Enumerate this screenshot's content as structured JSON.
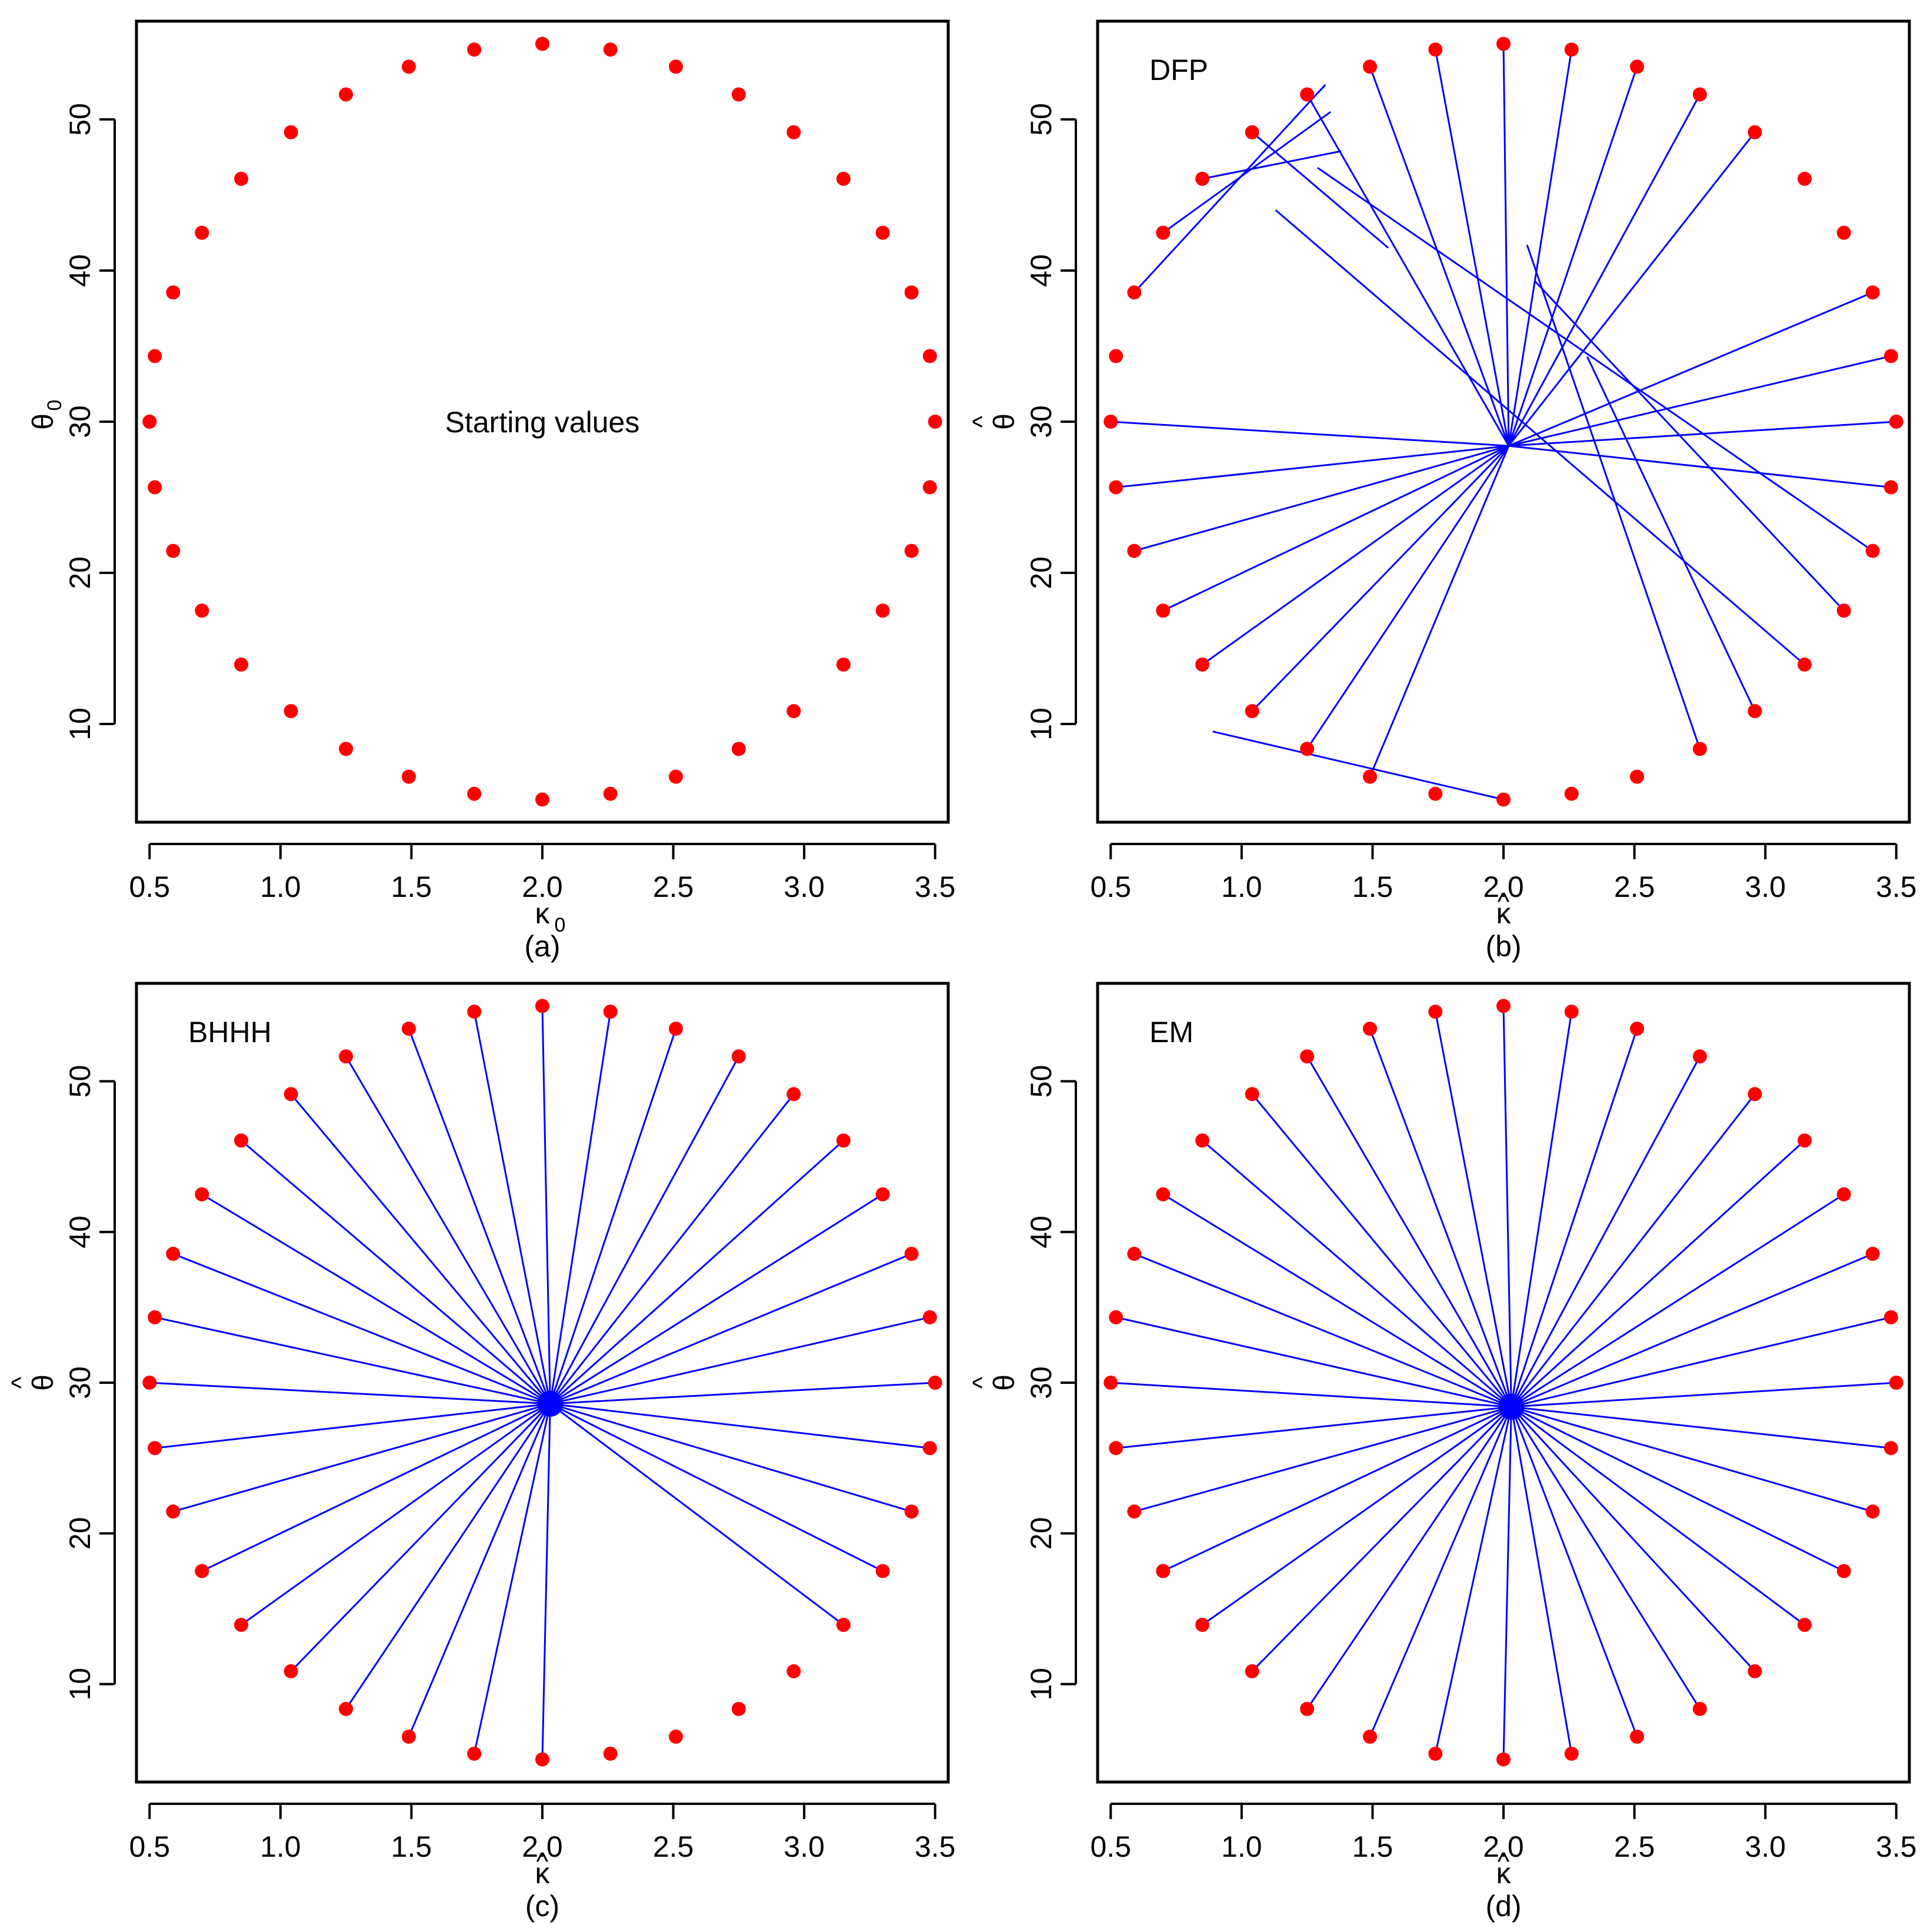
{
  "chart_data": [
    {
      "type": "scatter",
      "id": "a",
      "caption": "(a)",
      "annotation": "Starting values",
      "xlabel": "κ",
      "xlabel_sub": "0",
      "xlabel_hat": "",
      "ylabel": "θ",
      "ylabel_sub": "0",
      "ylabel_hat": "",
      "xlim": [
        0.45,
        3.55
      ],
      "ylim": [
        3.5,
        56.5
      ],
      "xticks": [
        0.5,
        1.0,
        1.5,
        2.0,
        2.5,
        3.0,
        3.5
      ],
      "xtick_labels": [
        "0.5",
        "1.0",
        "1.5",
        "2.0",
        "2.5",
        "3.0",
        "3.5"
      ],
      "yticks": [
        10,
        20,
        30,
        40,
        50
      ],
      "ytick_labels": [
        "10",
        "20",
        "30",
        "40",
        "50"
      ],
      "point_color": "#ff0000",
      "line_color": "#0000ff",
      "segments": []
    },
    {
      "type": "scatter",
      "id": "b",
      "caption": "(b)",
      "annotation": "DFP",
      "xlabel": "κ",
      "xlabel_sub": "",
      "xlabel_hat": "^",
      "ylabel": "θ",
      "ylabel_sub": "",
      "ylabel_hat": "^",
      "xlim": [
        0.45,
        3.55
      ],
      "ylim": [
        3.5,
        56.5
      ],
      "xticks": [
        0.5,
        1.0,
        1.5,
        2.0,
        2.5,
        3.0,
        3.5
      ],
      "xtick_labels": [
        "0.5",
        "1.0",
        "1.5",
        "2.0",
        "2.5",
        "3.0",
        "3.5"
      ],
      "yticks": [
        10,
        20,
        30,
        40,
        50
      ],
      "ytick_labels": [
        "10",
        "20",
        "30",
        "40",
        "50"
      ],
      "point_color": "#ff0000",
      "line_color": "#0000ff",
      "segments": [
        {
          "start_index": 0,
          "end": [
            2.02,
            28.4
          ]
        },
        {
          "start_index": 1,
          "end": [
            2.02,
            28.4
          ]
        },
        {
          "start_index": 2,
          "end": [
            2.02,
            28.4
          ]
        },
        {
          "start_index": 3,
          "end": [
            2.02,
            28.4
          ]
        },
        {
          "start_index": 4,
          "end": [
            2.02,
            28.4
          ]
        },
        {
          "start_index": 5,
          "end": [
            2.02,
            28.4
          ]
        },
        {
          "start_index": 6,
          "end": [
            2.02,
            28.4
          ]
        },
        {
          "start_index": 7,
          "end": [
            2.02,
            28.4
          ]
        },
        {
          "start_index": 9,
          "end": [
            0.89,
            9.5
          ]
        },
        {
          "start_index": 12,
          "end": [
            2.09,
            41.7
          ]
        },
        {
          "start_index": 13,
          "end": [
            2.32,
            34.3
          ]
        },
        {
          "start_index": 14,
          "end": [
            1.13,
            44.0
          ]
        },
        {
          "start_index": 15,
          "end": [
            2.12,
            39.3
          ]
        },
        {
          "start_index": 16,
          "end": [
            1.29,
            46.8
          ]
        },
        {
          "start_index": 17,
          "end": [
            2.02,
            28.4
          ]
        },
        {
          "start_index": 18,
          "end": [
            2.02,
            28.4
          ]
        },
        {
          "start_index": 19,
          "end": [
            2.02,
            28.4
          ]
        },
        {
          "start_index": 20,
          "end": [
            2.02,
            28.4
          ]
        },
        {
          "start_index": 23,
          "end": [
            2.02,
            28.4
          ]
        },
        {
          "start_index": 24,
          "end": [
            2.02,
            28.4
          ]
        },
        {
          "start_index": 25,
          "end": [
            2.02,
            28.4
          ]
        },
        {
          "start_index": 26,
          "end": [
            2.02,
            28.4
          ]
        },
        {
          "start_index": 27,
          "end": [
            2.02,
            28.4
          ]
        },
        {
          "start_index": 28,
          "end": [
            2.02,
            28.4
          ]
        },
        {
          "start_index": 29,
          "end": [
            2.02,
            28.4
          ]
        },
        {
          "start_index": 30,
          "end": [
            2.02,
            28.4
          ]
        },
        {
          "start_index": 31,
          "end": [
            1.56,
            41.5
          ]
        },
        {
          "start_index": 32,
          "end": [
            1.38,
            47.9
          ]
        },
        {
          "start_index": 33,
          "end": [
            1.34,
            50.5
          ]
        },
        {
          "start_index": 34,
          "end": [
            1.32,
            52.3
          ]
        }
      ]
    },
    {
      "type": "scatter",
      "id": "c",
      "caption": "(c)",
      "annotation": "BHHH",
      "xlabel": "κ",
      "xlabel_sub": "",
      "xlabel_hat": "^",
      "ylabel": "θ",
      "ylabel_sub": "",
      "ylabel_hat": "^",
      "xlim": [
        0.45,
        3.55
      ],
      "ylim": [
        3.5,
        56.5
      ],
      "xticks": [
        0.5,
        1.0,
        1.5,
        2.0,
        2.5,
        3.0,
        3.5
      ],
      "xtick_labels": [
        "0.5",
        "1.0",
        "1.5",
        "2.0",
        "2.5",
        "3.0",
        "3.5"
      ],
      "yticks": [
        10,
        20,
        30,
        40,
        50
      ],
      "ytick_labels": [
        "10",
        "20",
        "30",
        "40",
        "50"
      ],
      "point_color": "#ff0000",
      "line_color": "#0000ff",
      "converged_to": [
        2.03,
        28.6
      ],
      "converged_indices": [
        0,
        1,
        2,
        3,
        4,
        5,
        6,
        7,
        8,
        9,
        14,
        15,
        16,
        17,
        18,
        19,
        20,
        21,
        22,
        23,
        24,
        25,
        26,
        27,
        28,
        29,
        30,
        31,
        32,
        33,
        34,
        35
      ]
    },
    {
      "type": "scatter",
      "id": "d",
      "caption": "(d)",
      "annotation": "EM",
      "xlabel": "κ",
      "xlabel_sub": "",
      "xlabel_hat": "^",
      "ylabel": "θ",
      "ylabel_sub": "",
      "ylabel_hat": "^",
      "xlim": [
        0.45,
        3.55
      ],
      "ylim": [
        3.5,
        56.5
      ],
      "xticks": [
        0.5,
        1.0,
        1.5,
        2.0,
        2.5,
        3.0,
        3.5
      ],
      "xtick_labels": [
        "0.5",
        "1.0",
        "1.5",
        "2.0",
        "2.5",
        "3.0",
        "3.5"
      ],
      "yticks": [
        10,
        20,
        30,
        40,
        50
      ],
      "ytick_labels": [
        "10",
        "20",
        "30",
        "40",
        "50"
      ],
      "point_color": "#ff0000",
      "line_color": "#0000ff",
      "converged_to": [
        2.03,
        28.4
      ],
      "converged_indices": "all"
    }
  ],
  "starting_values": {
    "kappa0": [
      0.5,
      0.52,
      0.59,
      0.7,
      0.85,
      1.04,
      1.25,
      1.49,
      1.74,
      2.0,
      2.26,
      2.51,
      2.75,
      2.96,
      3.15,
      3.3,
      3.41,
      3.48,
      3.5,
      3.48,
      3.41,
      3.3,
      3.15,
      2.96,
      2.75,
      2.51,
      2.26,
      2.0,
      1.74,
      1.49,
      1.25,
      1.04,
      0.85,
      0.7,
      0.59,
      0.52
    ],
    "theta0": [
      30.0,
      25.66,
      21.45,
      17.5,
      13.93,
      10.85,
      8.35,
      6.51,
      5.38,
      5.0,
      5.38,
      6.51,
      8.35,
      10.85,
      13.93,
      17.5,
      21.45,
      25.66,
      30.0,
      34.34,
      38.55,
      42.5,
      46.07,
      49.15,
      51.65,
      53.49,
      54.62,
      55.0,
      54.62,
      53.49,
      51.65,
      49.15,
      46.07,
      42.5,
      38.55,
      34.34
    ]
  }
}
